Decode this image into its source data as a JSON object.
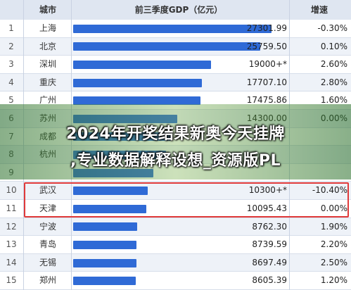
{
  "table": {
    "headers": {
      "city": "城市",
      "gdp": "前三季度GDP（亿元）",
      "growth": "增速"
    },
    "rows": [
      {
        "rank": "1",
        "city": "上海",
        "value": "27301.99",
        "growth": "-0.30%"
      },
      {
        "rank": "2",
        "city": "北京",
        "value": "25759.50",
        "growth": "0.10%"
      },
      {
        "rank": "3",
        "city": "深圳",
        "value": "19000+*",
        "growth": "2.60%"
      },
      {
        "rank": "4",
        "city": "重庆",
        "value": "17707.10",
        "growth": "2.80%"
      },
      {
        "rank": "5",
        "city": "广州",
        "value": "17475.86",
        "growth": "1.60%"
      },
      {
        "rank": "6",
        "city": "苏州",
        "value": "14300.00",
        "growth": "0.00%"
      },
      {
        "rank": "7",
        "city": "成都",
        "value": "",
        "growth": ""
      },
      {
        "rank": "8",
        "city": "杭州",
        "value": "",
        "growth": ""
      },
      {
        "rank": "9",
        "city": "",
        "value": "",
        "growth": ""
      },
      {
        "rank": "10",
        "city": "武汉",
        "value": "10300+*",
        "growth": "-10.40%"
      },
      {
        "rank": "11",
        "city": "天津",
        "value": "10095.43",
        "growth": "0.00%"
      },
      {
        "rank": "12",
        "city": "宁波",
        "value": "8762.30",
        "growth": "1.90%"
      },
      {
        "rank": "13",
        "city": "青岛",
        "value": "8739.59",
        "growth": "2.20%"
      },
      {
        "rank": "14",
        "city": "无锡",
        "value": "8697.49",
        "growth": "2.50%"
      },
      {
        "rank": "15",
        "city": "郑州",
        "value": "8605.39",
        "growth": "1.20%"
      }
    ]
  },
  "chart_data": {
    "type": "bar",
    "title": "前三季度GDP（亿元）",
    "categories": [
      "上海",
      "北京",
      "深圳",
      "重庆",
      "广州",
      "苏州",
      "成都",
      "杭州",
      "",
      "武汉",
      "天津",
      "宁波",
      "青岛",
      "无锡",
      "郑州"
    ],
    "values": [
      27301.99,
      25759.5,
      19000,
      17707.1,
      17475.86,
      14300,
      13500,
      12800,
      11000,
      10300,
      10095.43,
      8762.3,
      8739.59,
      8697.49,
      8605.39
    ],
    "ylim": [
      0,
      27301.99
    ]
  },
  "overlay": {
    "line1": "2024年开奖结果新奥今天挂牌",
    "line2": ",专业数据解释设想_资源版PL"
  },
  "colors": {
    "bar": "#2f6ad6",
    "highlight": "#e03a3a",
    "overlay": "#4a8c28"
  }
}
